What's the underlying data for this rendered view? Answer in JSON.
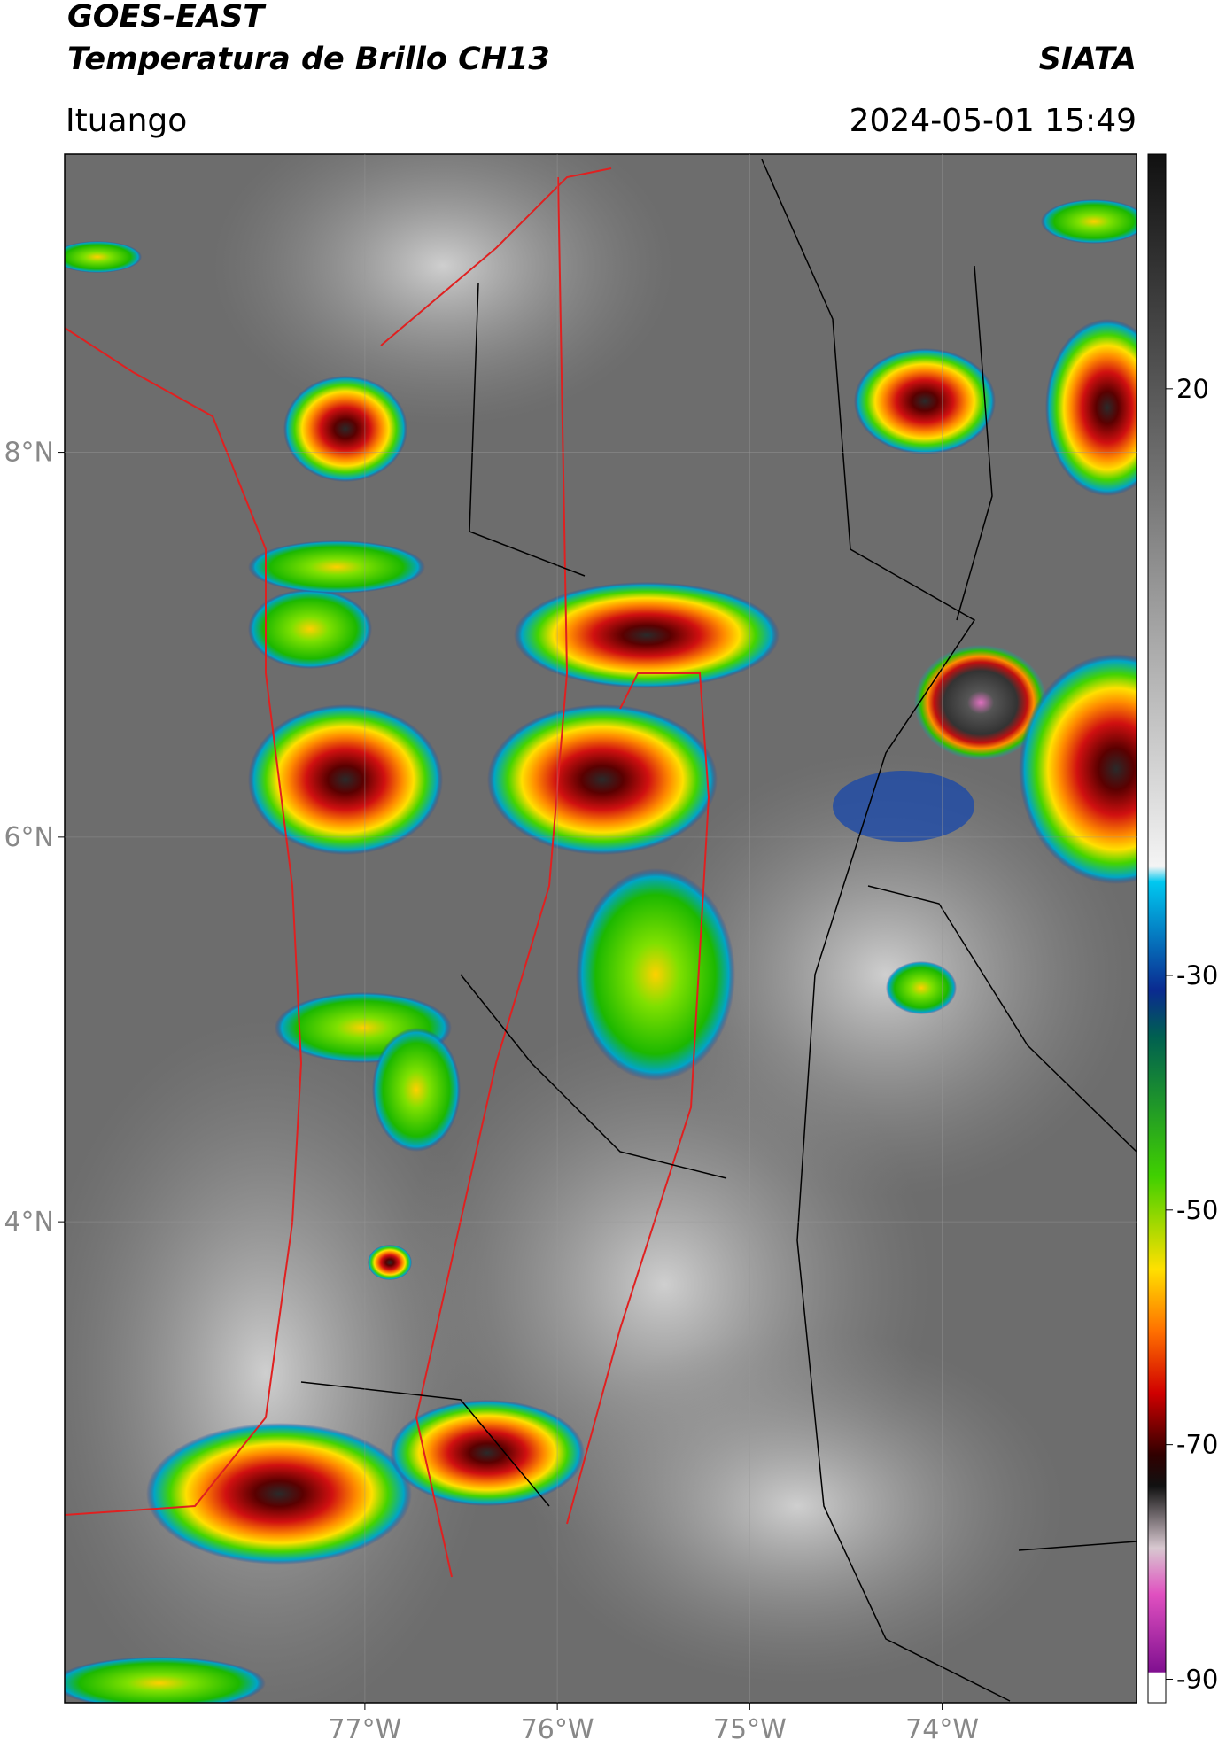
{
  "header": {
    "title": "GOES-EAST",
    "subtitle": "Temperatura de Brillo CH13",
    "brand": "SIATA",
    "location": "Ituango",
    "timestamp": "2024-05-01 15:49"
  },
  "map": {
    "xlim": [
      -78.56,
      -72.99
    ],
    "ylim": [
      1.5,
      9.55
    ],
    "xticks": [
      {
        "value": -77,
        "label": "77°W"
      },
      {
        "value": -76,
        "label": "76°W"
      },
      {
        "value": -75,
        "label": "75°W"
      },
      {
        "value": -74,
        "label": "74°W"
      }
    ],
    "yticks": [
      {
        "value": 8,
        "label": "8°N"
      },
      {
        "value": 6,
        "label": "6°N"
      },
      {
        "value": 4,
        "label": "4°N"
      }
    ]
  },
  "colorbar": {
    "lim": [
      -92,
      40
    ],
    "ticks": [
      20,
      -30,
      -50,
      -70,
      -90
    ]
  }
}
